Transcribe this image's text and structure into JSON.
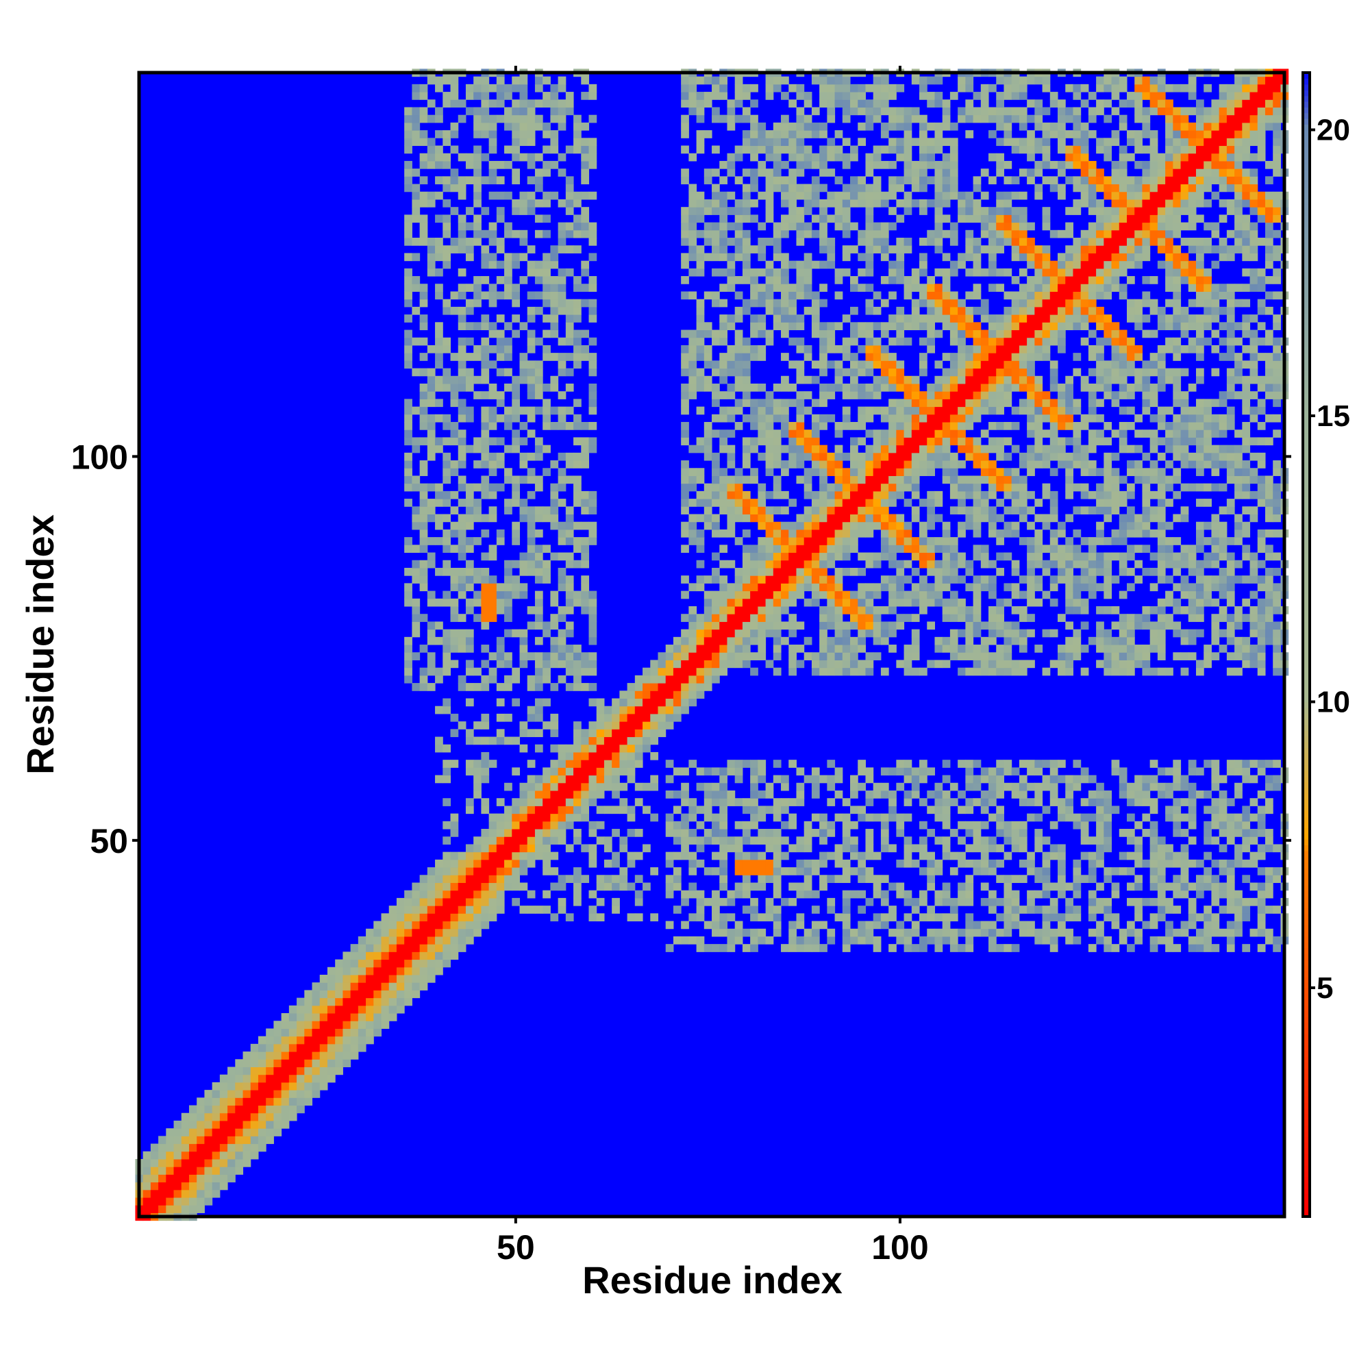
{
  "chart_data": {
    "type": "heatmap",
    "title": "",
    "xlabel": "Residue index",
    "ylabel": "Residue index",
    "xlim": [
      1,
      150
    ],
    "ylim": [
      1,
      150
    ],
    "x_ticks": [
      50,
      100
    ],
    "y_ticks": [
      50,
      100
    ],
    "colorbar": {
      "ticks": [
        5,
        10,
        15,
        20
      ],
      "range": [
        1,
        21
      ],
      "stops": [
        {
          "value": 1,
          "color": "#ff0000"
        },
        {
          "value": 7.3,
          "color": "#ff7f00"
        },
        {
          "value": 7.6,
          "color": "#ffa500"
        },
        {
          "value": 10,
          "color": "#a8b890"
        },
        {
          "value": 15,
          "color": "#9cb39a"
        },
        {
          "value": 20,
          "color": "#6a8ab4"
        },
        {
          "value": 21,
          "color": "#0000ff"
        }
      ]
    },
    "background_value": 21,
    "background_color": "#0000ff",
    "description_free_regions": {
      "diagonal": "contact distance ~1 (red) along i=j",
      "helix_band_1_45": "orange/yellow band near diagonal for residues 1–45",
      "beta_cross_patterns": "orange anti-diagonal crossings for residues 70–150",
      "off_diagonal_blocks": "green/grey blocks for residues 35–60 vs 70–150"
    }
  }
}
